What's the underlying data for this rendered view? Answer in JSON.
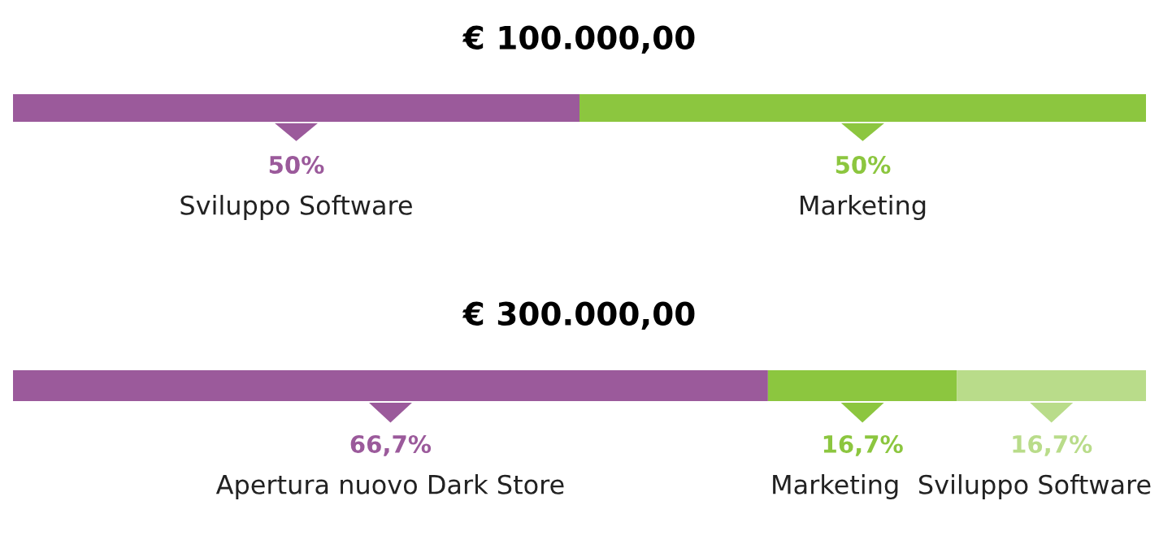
{
  "chart_data": [
    {
      "type": "bar",
      "orientation": "horizontal",
      "stacked": true,
      "title": "€ 100.000,00",
      "categories": [
        null
      ],
      "tick_labels": false,
      "series": [
        {
          "name": "Sviluppo Software",
          "color": "#9b5a9b",
          "values": [
            50
          ],
          "value_labels": [
            "50%"
          ]
        },
        {
          "name": "Marketing",
          "color": "#8cc63f",
          "values": [
            50
          ],
          "value_labels": [
            "50%"
          ]
        }
      ]
    },
    {
      "type": "bar",
      "orientation": "horizontal",
      "stacked": true,
      "title": "€ 300.000,00",
      "categories": [
        null
      ],
      "tick_labels": false,
      "series": [
        {
          "name": "Apertura nuovo Dark Store",
          "color": "#9b5a9b",
          "values": [
            66.7
          ],
          "value_labels": [
            "66,7%"
          ]
        },
        {
          "name": "Marketing",
          "color": "#8cc63f",
          "values": [
            16.7
          ],
          "value_labels": [
            "16,7%"
          ]
        },
        {
          "name": "Sviluppo Software",
          "color": "#b9dc8a",
          "values": [
            16.7
          ],
          "value_labels": [
            "16,7%"
          ]
        }
      ]
    }
  ]
}
